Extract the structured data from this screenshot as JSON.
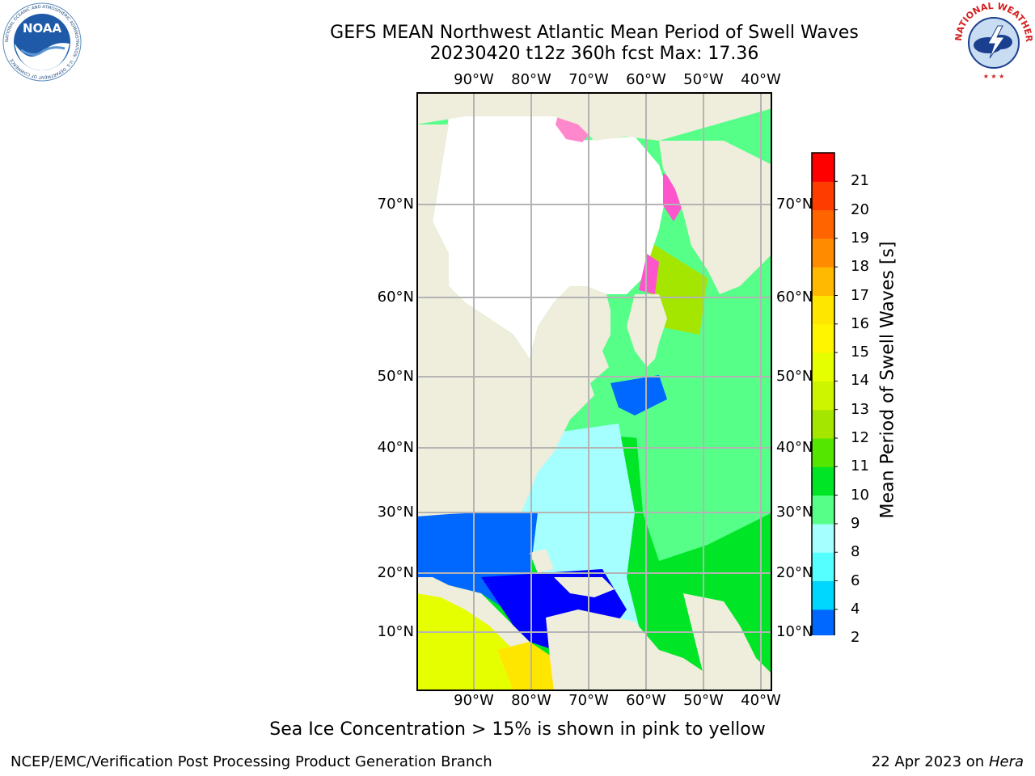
{
  "title": {
    "line1": "GEFS MEAN Northwest Atlantic Mean Period of Swell Waves",
    "line2": "20230420 t12z 360h fcst   Max: 17.36"
  },
  "logos": {
    "noaa_text": "NOAA",
    "noaa_ring": "NATIONAL OCEANIC AND ATMOSPHERIC ADMINISTRATION · U.S. DEPARTMENT OF COMMERCE",
    "nws_ring": "NATIONAL WEATHER SERVICE"
  },
  "map": {
    "lon_labels": [
      "90°W",
      "80°W",
      "70°W",
      "60°W",
      "50°W",
      "40°W"
    ],
    "lat_labels": [
      "70°N",
      "60°N",
      "50°N",
      "40°N",
      "30°N",
      "20°N",
      "10°N"
    ],
    "colors": {
      "land": "#efeddc",
      "ice_free_white": "#ffffff",
      "grid": "#b4b4b4"
    }
  },
  "colorbar": {
    "label": "Mean Period of Swell Waves [s]",
    "ticks": [
      "2",
      "4",
      "6",
      "8",
      "9",
      "10",
      "11",
      "12",
      "13",
      "14",
      "15",
      "16",
      "17",
      "18",
      "19",
      "20",
      "21"
    ],
    "colors": [
      "#0068ff",
      "#00d7ff",
      "#55ffff",
      "#a5ffff",
      "#55ff88",
      "#00e626",
      "#55e600",
      "#a5e600",
      "#cdf500",
      "#e6ff00",
      "#fff500",
      "#ffe600",
      "#ffb900",
      "#ff8c00",
      "#ff6400",
      "#ff3c00",
      "#ff0000"
    ],
    "under_color": "#0000ff"
  },
  "footnote": "Sea Ice Concentration > 15% is shown in pink to yellow",
  "footer": {
    "left": "NCEP/EMC/Verification Post Processing Product Generation Branch",
    "right_prefix": "22 Apr 2023 on ",
    "right_host": "Hera"
  }
}
